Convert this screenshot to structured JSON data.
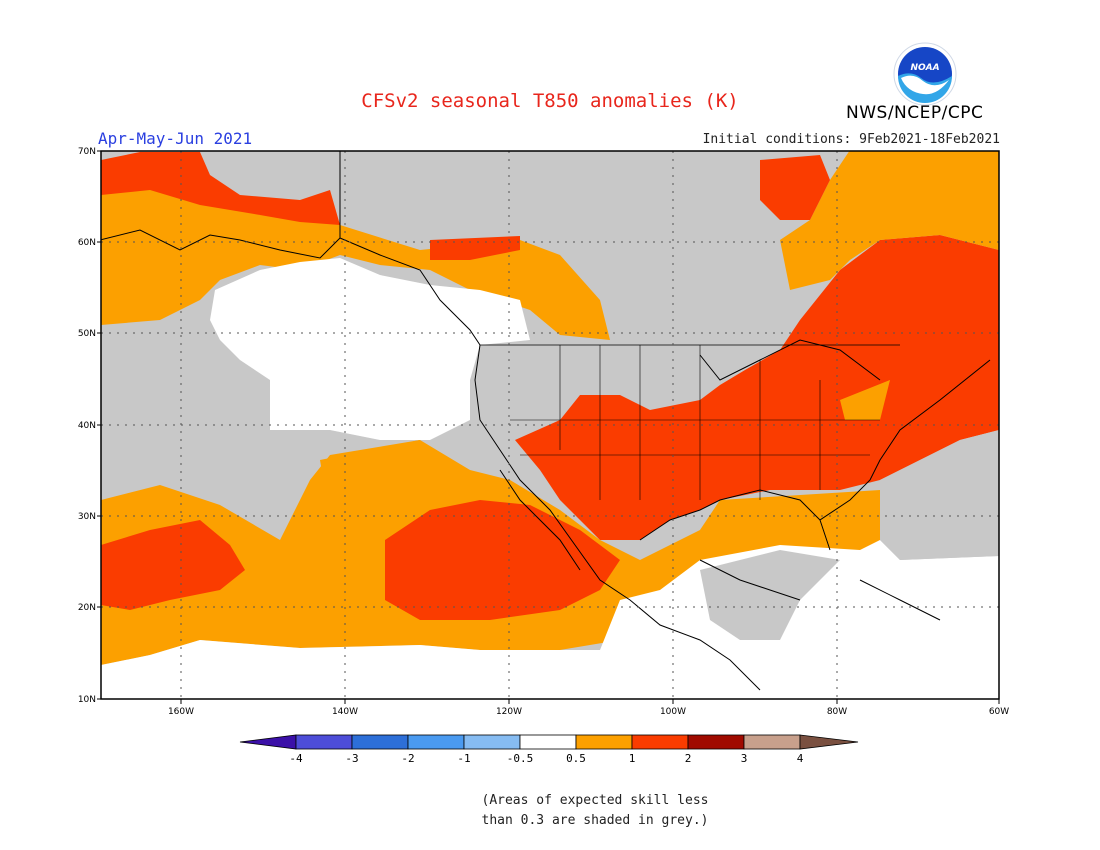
{
  "header": {
    "title": "CFSv2 seasonal T850 anomalies (K)",
    "season": "Apr-May-Jun 2021",
    "initial_conditions": "Initial conditions: 9Feb2021-18Feb2021",
    "agency": "NWS/NCEP/CPC",
    "logo_text": "NOAA"
  },
  "axes": {
    "lat_labels": [
      "70N",
      "60N",
      "50N",
      "40N",
      "30N",
      "20N",
      "10N"
    ],
    "lon_labels": [
      "160W",
      "140W",
      "120W",
      "100W",
      "80W",
      "60W"
    ]
  },
  "legend": {
    "tick_labels": [
      "-4",
      "-3",
      "-2",
      "-1",
      "-0.5",
      "0.5",
      "1",
      "2",
      "3",
      "4"
    ],
    "colors": [
      "#3b10a8",
      "#4d4dd8",
      "#2d6fd8",
      "#4a9af0",
      "#86bcf2",
      "#ffffff",
      "#fca000",
      "#fa3c00",
      "#a00a00",
      "#c8a08c",
      "#7a5040"
    ]
  },
  "palette": {
    "grey": "#c8c8c8",
    "white": "#ffffff",
    "orange": "#fca000",
    "red": "#fa3c00"
  },
  "footnote": {
    "line1": "(Areas of expected skill less",
    "line2": "than 0.3 are shaded in grey.)"
  }
}
